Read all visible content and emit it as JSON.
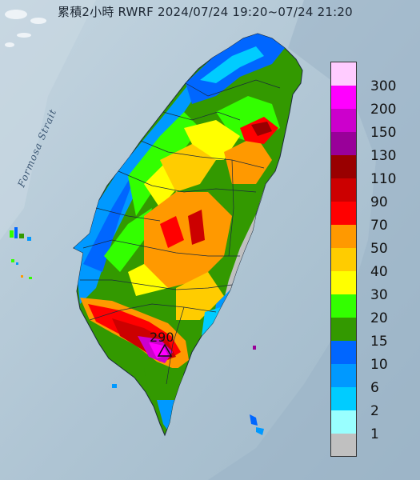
{
  "title": "累積2小時 RWRF 2024/07/24 19:20~07/24 21:20",
  "sea_label": "Formosa Strait",
  "peak": {
    "value": "290",
    "symbol": "triangle"
  },
  "legend": {
    "items": [
      {
        "label": "300",
        "color": "#ffccff"
      },
      {
        "label": "200",
        "color": "#ff00ff"
      },
      {
        "label": "150",
        "color": "#cc00cc"
      },
      {
        "label": "130",
        "color": "#990099"
      },
      {
        "label": "110",
        "color": "#990000"
      },
      {
        "label": "90",
        "color": "#cc0000"
      },
      {
        "label": "70",
        "color": "#ff0000"
      },
      {
        "label": "50",
        "color": "#ff9900"
      },
      {
        "label": "40",
        "color": "#ffcc00"
      },
      {
        "label": "30",
        "color": "#ffff00"
      },
      {
        "label": "20",
        "color": "#33ff00"
      },
      {
        "label": "15",
        "color": "#339900"
      },
      {
        "label": "10",
        "color": "#0066ff"
      },
      {
        "label": "6",
        "color": "#0099ff"
      },
      {
        "label": "2",
        "color": "#00ccff"
      },
      {
        "label": "1",
        "color": "#99ffff"
      },
      {
        "label": "",
        "color": "#c0c0c0"
      }
    ]
  },
  "colors": {
    "sea": "#b7cbd8",
    "land_no_rain": "#c0c0c0",
    "text": "#1d2733"
  }
}
